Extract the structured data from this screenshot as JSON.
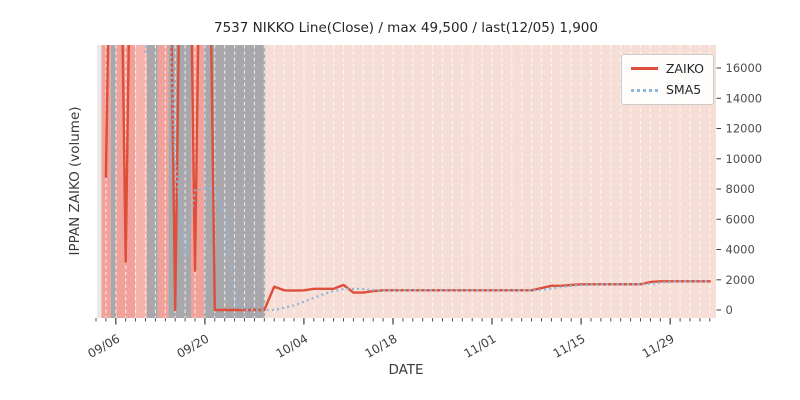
{
  "title": "7537 NIKKO Line(Close) / max 49,500 / last(12/05) 1,900",
  "axes": {
    "xlabel": "DATE",
    "ylabel": "IPPAN ZAIKO (volume)"
  },
  "legend": [
    {
      "label": "ZAIKO",
      "color": "#df4e38",
      "style": "solid"
    },
    {
      "label": "SMA5",
      "color": "#8fb7d9",
      "style": "dotted"
    }
  ],
  "colors": {
    "band_none": "#e9e9ea",
    "band_salmon": "#f0a29a",
    "band_salmon_light": "#f4b4ac",
    "band_gray": "#a7a7ac",
    "band_pink": "#f6ded7",
    "grid": "rgba(255,255,255,0.75)",
    "tick": "#3d3d3d",
    "tick_label": "#4d4d4d"
  },
  "chart_data": {
    "type": "line",
    "title": "7537 NIKKO Line(Close) / max 49,500 / last(12/05) 1,900",
    "xlabel": "DATE",
    "ylabel": "IPPAN ZAIKO (volume)",
    "max_value": 49500,
    "last_date": "12/05",
    "last_value": 1900,
    "ylim": [
      0,
      17500
    ],
    "y_ticks": [
      0,
      2000,
      4000,
      6000,
      8000,
      10000,
      12000,
      14000,
      16000
    ],
    "x_major_ticks": [
      "09/06",
      "09/20",
      "10/04",
      "10/18",
      "11/01",
      "11/15",
      "11/29"
    ],
    "x_major_indices": [
      2,
      11,
      21,
      30,
      40,
      49,
      58
    ],
    "grid": "vertical-dashed-white",
    "legend_position": "upper right",
    "x": [
      "09/04",
      "09/05",
      "09/06",
      "09/07",
      "09/08",
      "09/11",
      "09/12",
      "09/13",
      "09/14",
      "09/15",
      "09/19",
      "09/20",
      "09/21",
      "09/22",
      "09/25",
      "09/26",
      "09/27",
      "09/28",
      "09/29",
      "10/02",
      "10/03",
      "10/04",
      "10/05",
      "10/06",
      "10/10",
      "10/11",
      "10/12",
      "10/13",
      "10/16",
      "10/17",
      "10/18",
      "10/19",
      "10/20",
      "10/23",
      "10/24",
      "10/25",
      "10/26",
      "10/27",
      "10/30",
      "10/31",
      "11/01",
      "11/02",
      "11/06",
      "11/07",
      "11/08",
      "11/09",
      "11/10",
      "11/13",
      "11/14",
      "11/15",
      "11/16",
      "11/17",
      "11/20",
      "11/21",
      "11/22",
      "11/24",
      "11/27",
      "11/28",
      "11/29",
      "11/30",
      "12/01",
      "12/04",
      "12/05"
    ],
    "series": [
      {
        "name": "ZAIKO",
        "color": "#df4e38",
        "style": "solid",
        "width": 2.4,
        "values": [
          null,
          8800,
          49500,
          3200,
          49500,
          49500,
          49500,
          49500,
          0,
          49500,
          2600,
          49500,
          0,
          0,
          0,
          0,
          0,
          0,
          1550,
          1300,
          1280,
          1300,
          1400,
          1400,
          1400,
          1650,
          1150,
          1150,
          1250,
          1300,
          1300,
          1300,
          1300,
          1300,
          1300,
          1300,
          1300,
          1300,
          1300,
          1300,
          1300,
          1300,
          1300,
          1300,
          1300,
          1450,
          1600,
          1600,
          1650,
          1700,
          1700,
          1700,
          1700,
          1700,
          1700,
          1700,
          1850,
          1900,
          1900,
          1900,
          1900,
          1900,
          1900
        ]
      },
      {
        "name": "SMA5",
        "color": "#8fb7d9",
        "style": "dotted",
        "width": 2.3,
        "values": [
          null,
          null,
          null,
          null,
          null,
          17000,
          26000,
          26000,
          9800,
          3600,
          7900,
          8100,
          8000,
          6400,
          500,
          0,
          0,
          0,
          0,
          150,
          300,
          550,
          800,
          1050,
          1250,
          1380,
          1400,
          1380,
          1320,
          1280,
          1290,
          1300,
          1300,
          1300,
          1300,
          1300,
          1300,
          1300,
          1300,
          1300,
          1300,
          1300,
          1300,
          1300,
          1300,
          1330,
          1420,
          1520,
          1600,
          1650,
          1670,
          1690,
          1700,
          1700,
          1700,
          1700,
          1740,
          1800,
          1860,
          1890,
          1900,
          1900,
          1900
        ]
      }
    ],
    "bands": [
      {
        "from": -0.15,
        "to": 0.55,
        "color": "none"
      },
      {
        "from": 0.55,
        "to": 1.5,
        "color": "salmon"
      },
      {
        "from": 1.5,
        "to": 2.05,
        "color": "gray"
      },
      {
        "from": 2.05,
        "to": 3.95,
        "color": "salmon"
      },
      {
        "from": 3.95,
        "to": 5.15,
        "color": "salmon_light"
      },
      {
        "from": 5.15,
        "to": 6.25,
        "color": "gray"
      },
      {
        "from": 6.25,
        "to": 7.3,
        "color": "salmon"
      },
      {
        "from": 7.3,
        "to": 9.6,
        "color": "gray"
      },
      {
        "from": 9.6,
        "to": 10.9,
        "color": "salmon"
      },
      {
        "from": 10.9,
        "to": 17.1,
        "color": "gray"
      },
      {
        "from": 17.1,
        "to": 62.65,
        "color": "pink"
      }
    ]
  }
}
